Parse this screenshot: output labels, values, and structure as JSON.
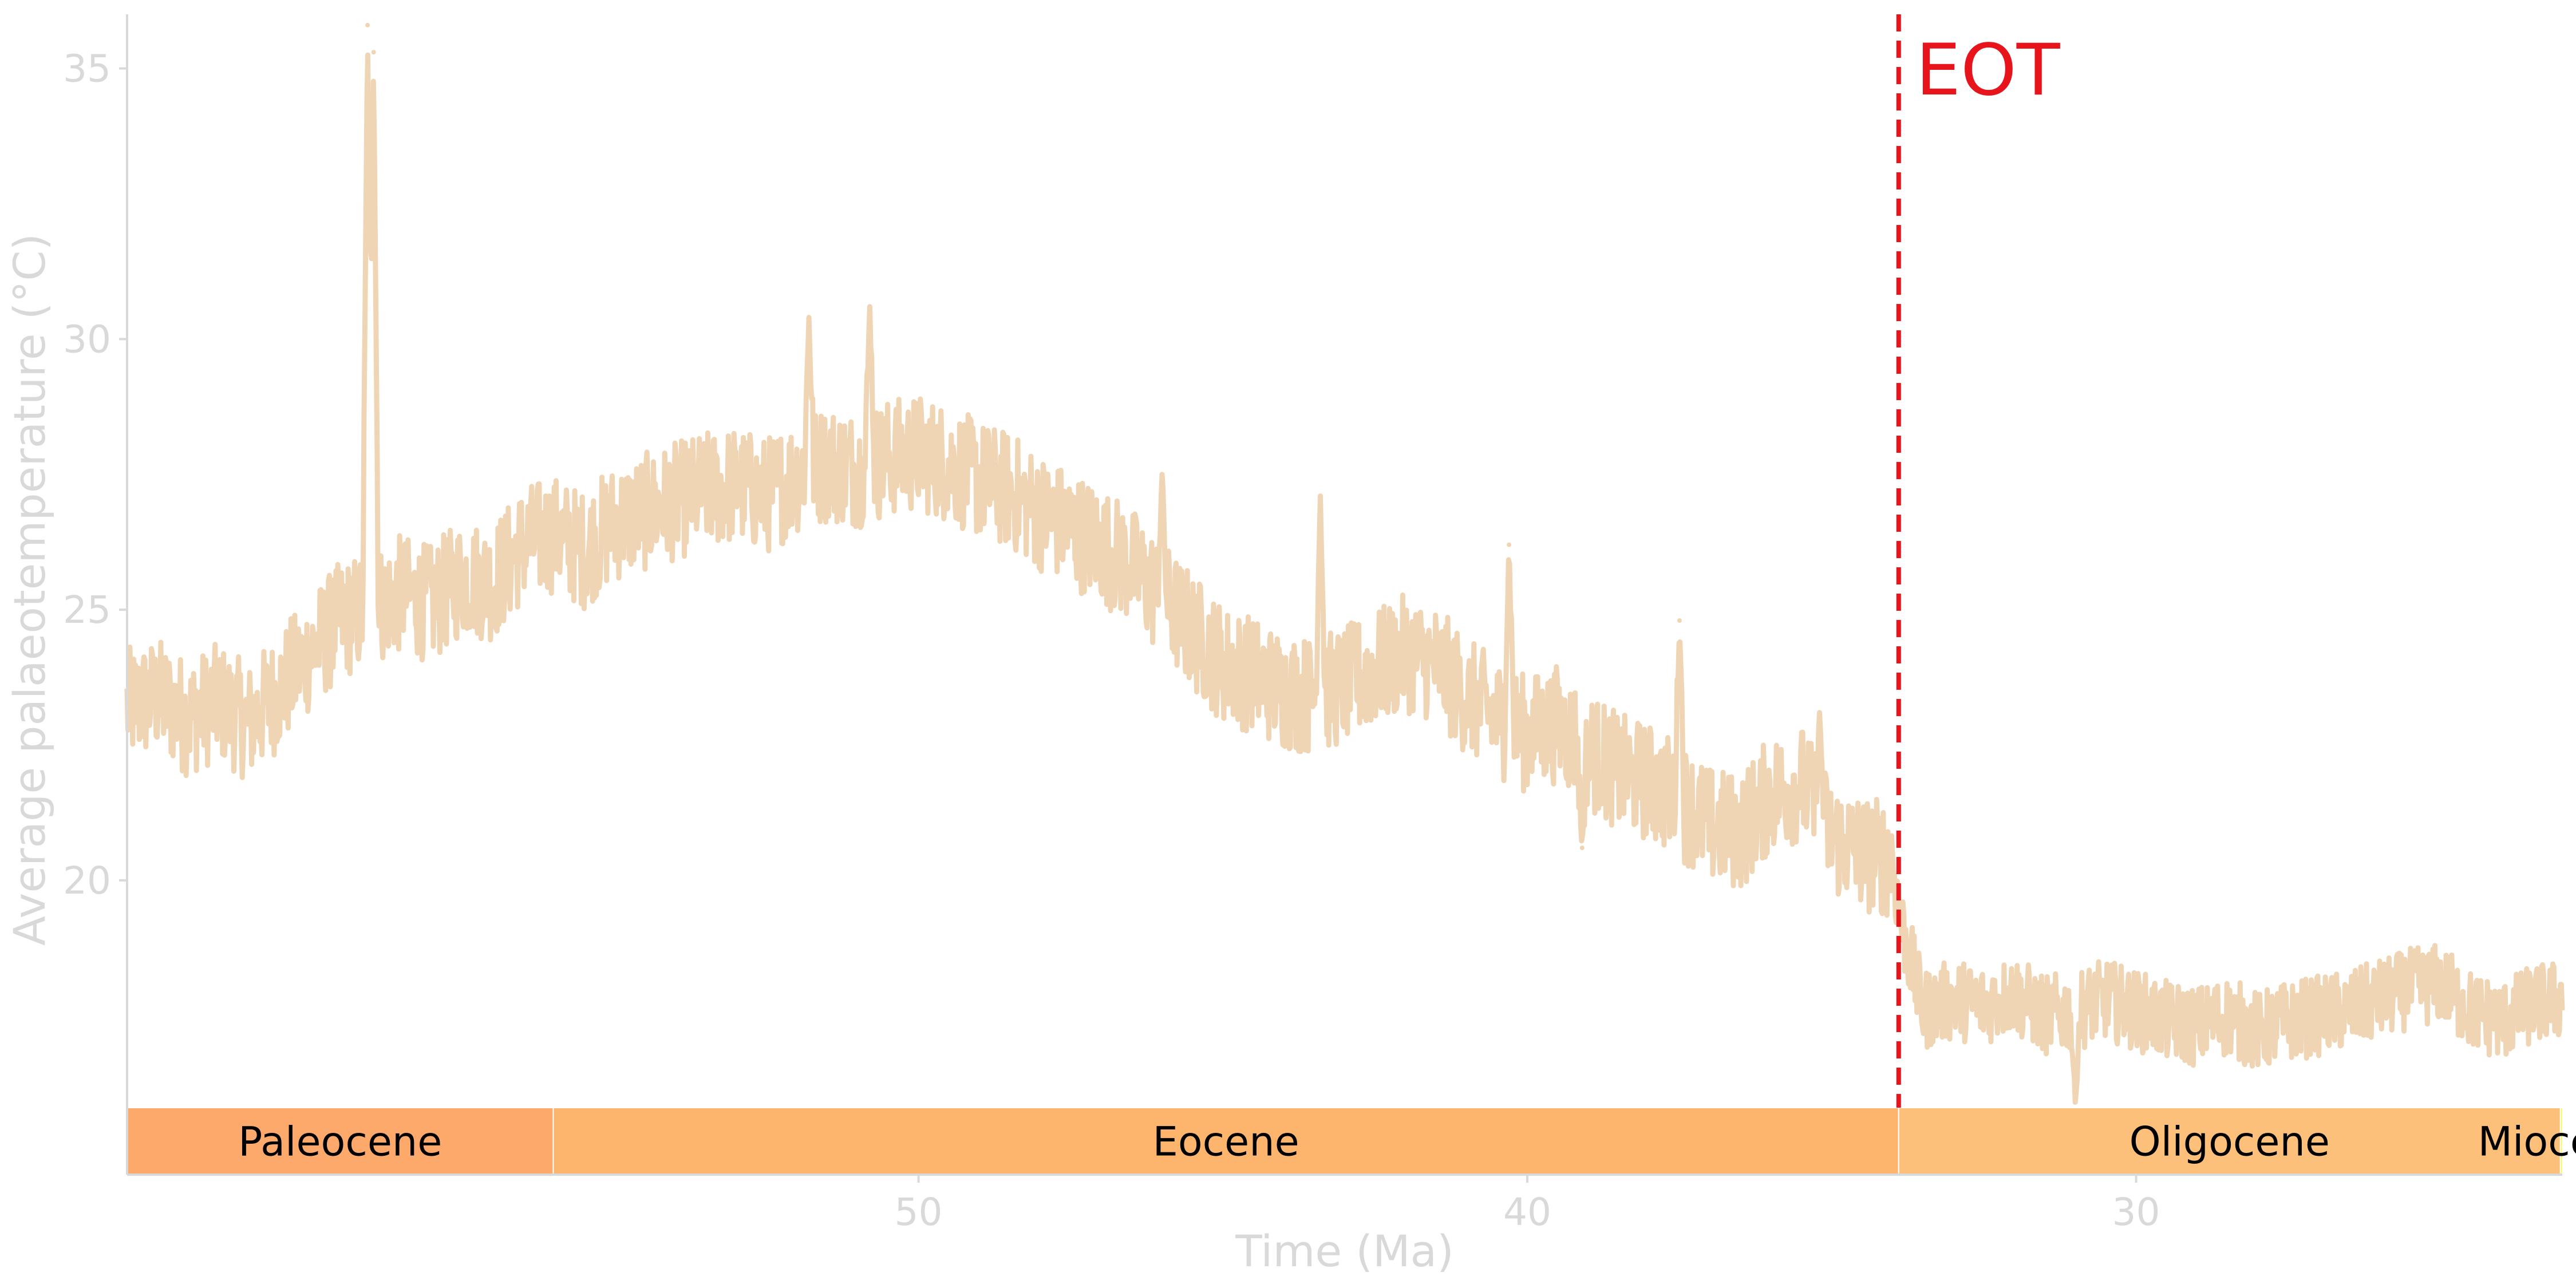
{
  "chart_data": {
    "type": "line",
    "title": "",
    "xlabel": "Time (Ma)",
    "ylabel": "Average palaeotemperature (°C)",
    "xlim": [
      63.0,
      23.0
    ],
    "ylim": [
      15.8,
      36.0
    ],
    "x_reversed": true,
    "xticks": [
      50,
      40,
      30
    ],
    "yticks": [
      20,
      25,
      30,
      35
    ],
    "grid": false,
    "line_color": "#f0d5b4",
    "series": [
      {
        "x": [
          63.0,
          62.5,
          62.0,
          61.5,
          61.0,
          60.5,
          60.0,
          59.5,
          59.0,
          58.5,
          58.0,
          57.5,
          57.0,
          56.5,
          56.0,
          55.5,
          55.0,
          54.5,
          54.0,
          53.5,
          53.0,
          52.5,
          52.0,
          51.5,
          51.0,
          50.5,
          50.0,
          49.5,
          49.0,
          48.5,
          48.0,
          47.5,
          47.0,
          46.5,
          46.0,
          45.5,
          45.0,
          44.5,
          44.0,
          43.5,
          43.0,
          42.5,
          42.0,
          41.5,
          41.0,
          40.5,
          40.0,
          39.5,
          39.0,
          38.5,
          38.0,
          37.5,
          37.0,
          36.5,
          36.0,
          35.5,
          35.0,
          34.5,
          34.0,
          33.9,
          33.5,
          33.0,
          32.5,
          32.0,
          31.5,
          31.0,
          30.5,
          30.0,
          29.5,
          29.0,
          28.5,
          28.0,
          27.5,
          27.0,
          26.5,
          26.0,
          25.5,
          25.0,
          24.5,
          24.0,
          23.5,
          23.0
        ],
        "y": [
          23.2,
          23.4,
          23.0,
          23.3,
          22.9,
          23.5,
          24.2,
          24.8,
          25.0,
          25.3,
          25.1,
          25.6,
          25.5,
          26.2,
          26.4,
          26.1,
          26.6,
          26.8,
          27.0,
          27.2,
          27.3,
          27.1,
          27.5,
          27.7,
          27.6,
          27.8,
          27.9,
          27.7,
          27.4,
          27.2,
          26.8,
          26.5,
          26.2,
          25.8,
          25.2,
          24.6,
          24.0,
          23.8,
          23.5,
          23.4,
          23.6,
          23.9,
          24.2,
          24.0,
          23.4,
          23.0,
          22.7,
          22.9,
          22.4,
          22.0,
          21.8,
          21.5,
          21.0,
          20.9,
          21.6,
          21.8,
          20.8,
          20.5,
          20.4,
          19.4,
          17.6,
          17.8,
          17.7,
          17.9,
          17.5,
          17.6,
          17.8,
          17.6,
          17.4,
          17.3,
          17.5,
          17.2,
          17.4,
          17.5,
          17.6,
          17.8,
          18.0,
          18.1,
          17.6,
          17.4,
          17.7,
          17.8
        ]
      }
    ],
    "spikes": [
      {
        "x": 59.05,
        "y": 35.8
      },
      {
        "x": 58.95,
        "y": 35.3
      },
      {
        "x": 50.8,
        "y": 30.6
      },
      {
        "x": 51.8,
        "y": 30.4
      },
      {
        "x": 46.0,
        "y": 27.5
      },
      {
        "x": 43.4,
        "y": 27.1
      },
      {
        "x": 40.3,
        "y": 26.2
      },
      {
        "x": 37.5,
        "y": 24.8
      },
      {
        "x": 35.2,
        "y": 23.1
      },
      {
        "x": 39.1,
        "y": 20.6
      },
      {
        "x": 31.0,
        "y": 15.9
      }
    ],
    "annotation": {
      "x": 33.9,
      "label": "EOT",
      "color": "#e8141c"
    },
    "epochs": [
      {
        "name": "Paleocene",
        "start": 63.0,
        "end": 56.0,
        "color": "#fda96b"
      },
      {
        "name": "Eocene",
        "start": 56.0,
        "end": 33.9,
        "color": "#fdb46c"
      },
      {
        "name": "Oligocene",
        "start": 33.9,
        "end": 23.03,
        "color": "#fdc07a"
      },
      {
        "name": "Miocene",
        "start": 23.03,
        "end": 20.0,
        "color": "#ffff00"
      }
    ]
  }
}
